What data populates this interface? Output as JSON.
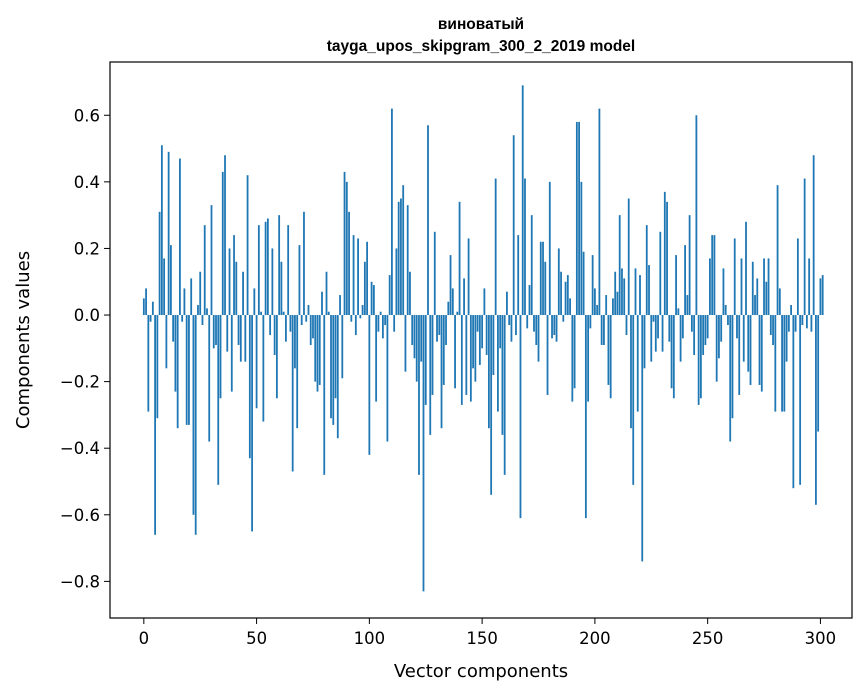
{
  "chart_data": {
    "type": "bar",
    "title": "виноватый",
    "subtitle": "tayga_upos_skipgram_300_2_2019 model",
    "xlabel": "Vector components",
    "ylabel": "Components values",
    "xlim": [
      -15,
      314
    ],
    "ylim": [
      -0.91,
      0.76
    ],
    "xticks": [
      0,
      50,
      100,
      150,
      200,
      250,
      300
    ],
    "yticks": [
      -0.8,
      -0.6,
      -0.4,
      -0.2,
      0.0,
      0.2,
      0.4,
      0.6
    ],
    "ytick_labels": [
      "−0.8",
      "−0.6",
      "−0.4",
      "−0.2",
      "0.0",
      "0.2",
      "0.4",
      "0.6"
    ],
    "grid": false,
    "bar_color": "#1f77b4",
    "values": [
      0.05,
      0.08,
      -0.29,
      -0.02,
      0.04,
      -0.66,
      -0.31,
      0.31,
      0.51,
      0.17,
      -0.16,
      0.49,
      0.21,
      -0.08,
      -0.23,
      -0.34,
      0.47,
      -0.02,
      0.08,
      -0.33,
      -0.33,
      0.11,
      -0.6,
      -0.66,
      0.03,
      0.13,
      -0.03,
      0.27,
      0.02,
      -0.38,
      0.33,
      -0.1,
      -0.09,
      -0.51,
      -0.25,
      0.43,
      0.48,
      -0.11,
      0.2,
      -0.23,
      0.24,
      0.16,
      -0.09,
      -0.14,
      0.13,
      -0.14,
      0.42,
      -0.43,
      -0.65,
      0.08,
      -0.28,
      0.27,
      0.01,
      -0.32,
      0.28,
      0.29,
      -0.06,
      0.2,
      -0.12,
      -0.25,
      0.3,
      0.16,
      0.01,
      -0.08,
      0.27,
      -0.05,
      -0.47,
      -0.16,
      -0.34,
      0.21,
      -0.03,
      0.31,
      -0.02,
      0.03,
      -0.09,
      -0.07,
      -0.2,
      -0.23,
      -0.21,
      0.07,
      -0.48,
      0.13,
      0.01,
      -0.31,
      -0.33,
      -0.25,
      -0.37,
      0.06,
      -0.19,
      0.43,
      0.4,
      0.31,
      -0.02,
      0.24,
      -0.06,
      0.23,
      -0.01,
      0.03,
      0.16,
      0.22,
      -0.42,
      0.1,
      0.09,
      -0.26,
      -0.05,
      0.01,
      -0.07,
      -0.03,
      -0.38,
      0.12,
      0.62,
      -0.05,
      0.2,
      0.34,
      0.35,
      0.39,
      -0.17,
      0.33,
      0.13,
      -0.09,
      -0.13,
      -0.2,
      -0.48,
      -0.14,
      -0.83,
      -0.27,
      0.57,
      -0.36,
      -0.24,
      0.25,
      -0.08,
      -0.06,
      -0.34,
      -0.21,
      -0.09,
      0.04,
      0.18,
      0.08,
      -0.22,
      0.01,
      0.34,
      -0.27,
      0.11,
      -0.24,
      0.23,
      -0.26,
      -0.16,
      -0.2,
      -0.05,
      -0.15,
      -0.1,
      0.08,
      -0.12,
      -0.34,
      -0.54,
      -0.18,
      0.41,
      -0.29,
      -0.1,
      -0.36,
      -0.48,
      0.07,
      -0.03,
      -0.08,
      0.54,
      -0.06,
      0.24,
      -0.61,
      0.69,
      0.41,
      -0.04,
      0.09,
      0.3,
      -0.05,
      -0.09,
      -0.14,
      0.22,
      0.22,
      0.16,
      -0.24,
      0.4,
      -0.07,
      -0.06,
      -0.08,
      0.2,
      0.13,
      -0.02,
      0.1,
      0.12,
      0.05,
      -0.26,
      -0.22,
      0.58,
      0.58,
      0.4,
      0.19,
      -0.61,
      -0.26,
      -0.04,
      0.18,
      0.08,
      0.03,
      0.62,
      -0.09,
      -0.09,
      0.06,
      -0.21,
      -0.25,
      0.05,
      0.13,
      0.07,
      0.3,
      0.14,
      0.11,
      -0.06,
      0.35,
      -0.34,
      -0.51,
      0.14,
      -0.29,
      0.12,
      -0.74,
      -0.16,
      0.27,
      0.15,
      -0.14,
      -0.02,
      -0.11,
      -0.07,
      0.25,
      -0.11,
      0.37,
      0.34,
      -0.08,
      -0.22,
      -0.25,
      0.18,
      0.02,
      -0.14,
      -0.07,
      0.21,
      0.06,
      0.3,
      -0.05,
      -0.12,
      0.6,
      -0.27,
      -0.25,
      -0.12,
      -0.09,
      -0.07,
      0.17,
      0.24,
      0.24,
      -0.2,
      -0.13,
      -0.08,
      0.14,
      0.03,
      -0.03,
      -0.38,
      -0.31,
      0.23,
      -0.07,
      -0.24,
      0.17,
      -0.14,
      0.28,
      -0.17,
      -0.21,
      0.16,
      0.06,
      0.11,
      -0.21,
      -0.23,
      0.17,
      0.1,
      0.17,
      -0.06,
      -0.09,
      -0.29,
      0.39,
      0.08,
      -0.29,
      -0.29,
      -0.14,
      -0.05,
      0.03,
      -0.52,
      -0.05,
      0.23,
      -0.51,
      -0.03,
      0.41,
      -0.04,
      0.17,
      -0.05,
      0.48,
      -0.57,
      -0.35,
      0.11,
      0.12
    ]
  }
}
